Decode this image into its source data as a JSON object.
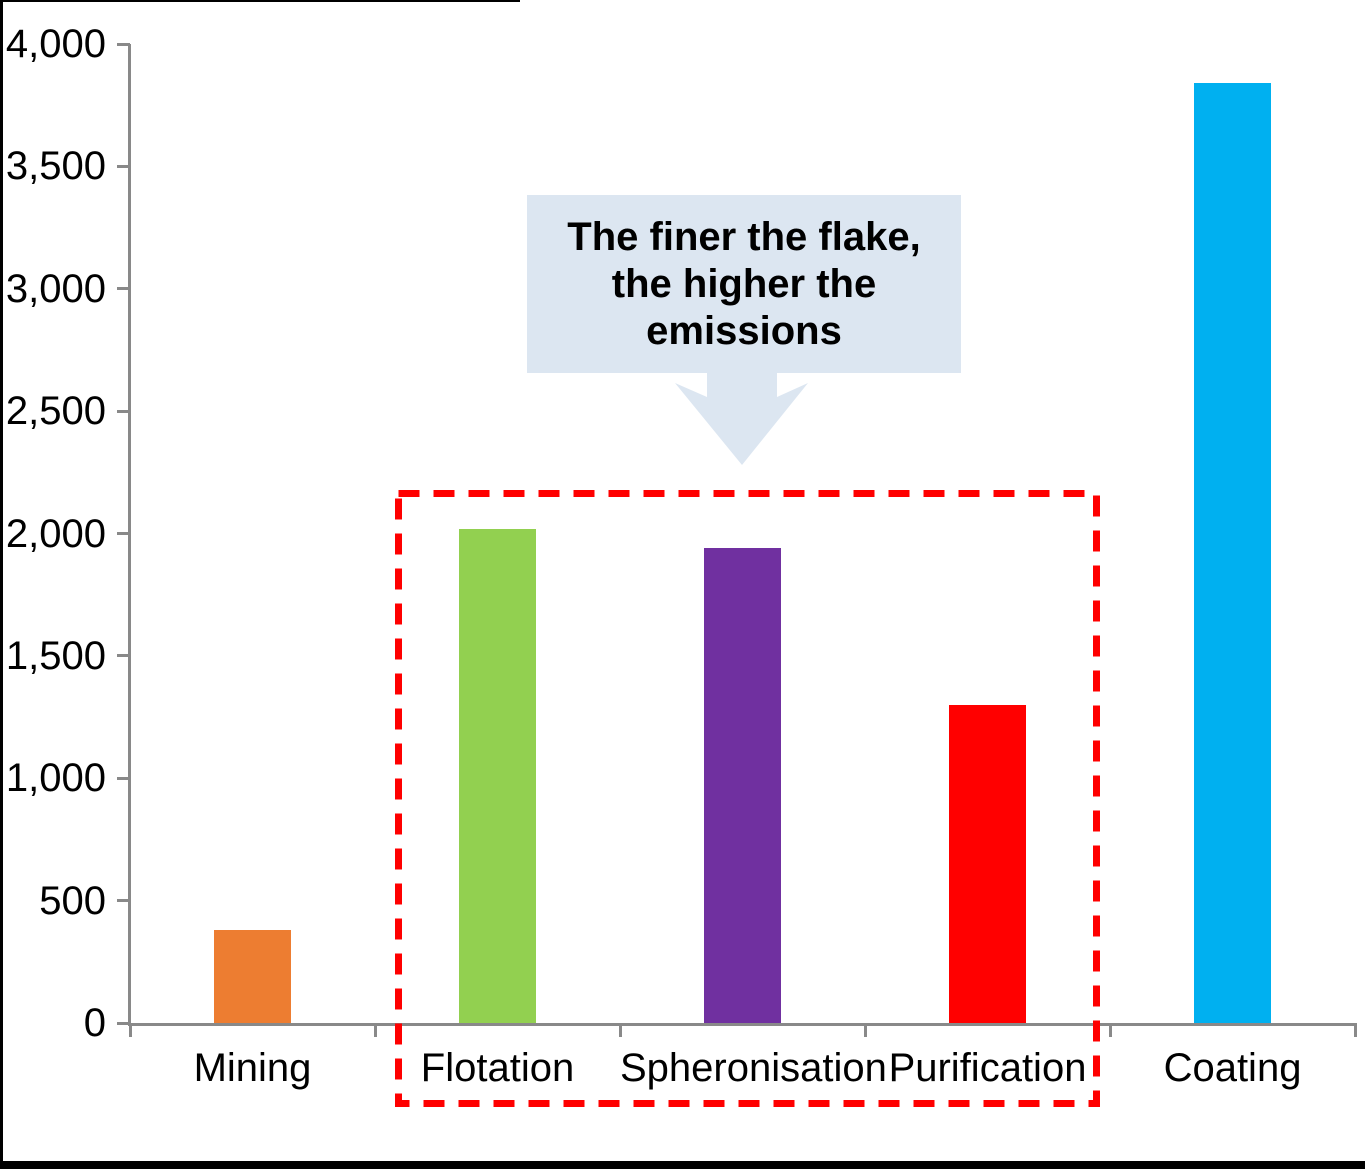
{
  "chart_data": {
    "type": "bar",
    "title": "",
    "xlabel": "",
    "ylabel": "",
    "categories": [
      "Mining",
      "Flotation",
      "Spheronisation",
      "Purification",
      "Coating"
    ],
    "values": [
      380,
      2020,
      1940,
      1300,
      3840
    ],
    "bar_colors": [
      "#ED7D31",
      "#92D050",
      "#7030A0",
      "#FF0000",
      "#00B0F0"
    ],
    "ylim": [
      0,
      4000
    ],
    "y_tick_interval": 500,
    "y_tick_labels": [
      "0",
      "500",
      "1,000",
      "1,500",
      "2,000",
      "2,500",
      "3,000",
      "3,500",
      "4,000"
    ],
    "grid": false,
    "legend": false,
    "axis_color": "#898989",
    "text_color": "#000000"
  },
  "callout": {
    "lines": [
      "The finer the flake,",
      "the higher the",
      "emissions"
    ],
    "full_text": "The finer the flake, the higher the emissions",
    "bg_color": "#DCE6F1",
    "text_color": "#000000"
  },
  "highlight_box": {
    "color": "#FF0000",
    "style": "dashed",
    "categories_enclosed": [
      "Flotation",
      "Spheronisation",
      "Purification"
    ]
  }
}
